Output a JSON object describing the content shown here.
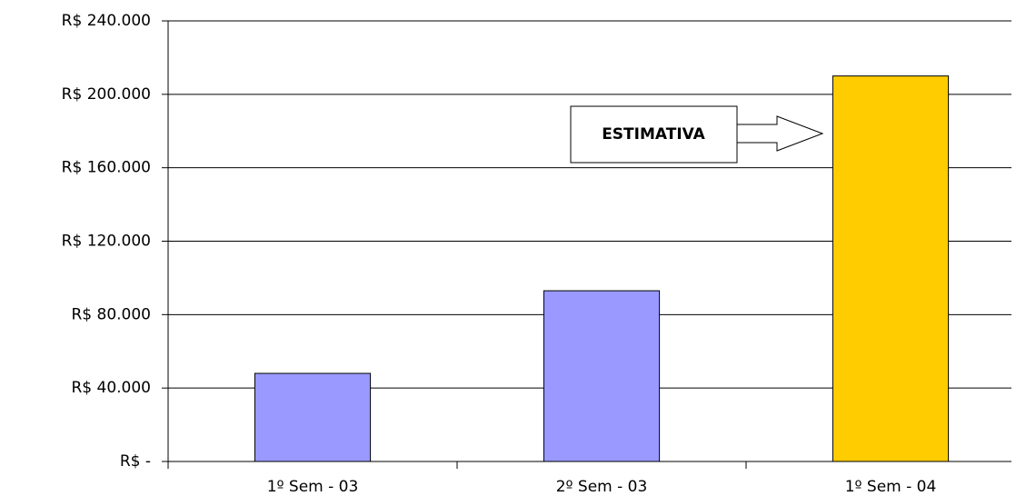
{
  "chart_data": {
    "type": "bar",
    "categories": [
      "1º Sem - 03",
      "2º Sem - 03",
      "1º Sem - 04"
    ],
    "values": [
      48000,
      93000,
      210000
    ],
    "colors": [
      "#9999ff",
      "#9999ff",
      "#ffcc00"
    ],
    "ylim": [
      0,
      240000
    ],
    "yticks": [
      {
        "value": 0,
        "label": "R$ -"
      },
      {
        "value": 40000,
        "label": "R$ 40.000"
      },
      {
        "value": 80000,
        "label": "R$ 80.000"
      },
      {
        "value": 120000,
        "label": "R$ 120.000"
      },
      {
        "value": 160000,
        "label": "R$ 160.000"
      },
      {
        "value": 200000,
        "label": "R$ 200.000"
      },
      {
        "value": 240000,
        "label": "R$ 240.000"
      }
    ],
    "grid": true,
    "annotation": "ESTIMATIVA"
  }
}
